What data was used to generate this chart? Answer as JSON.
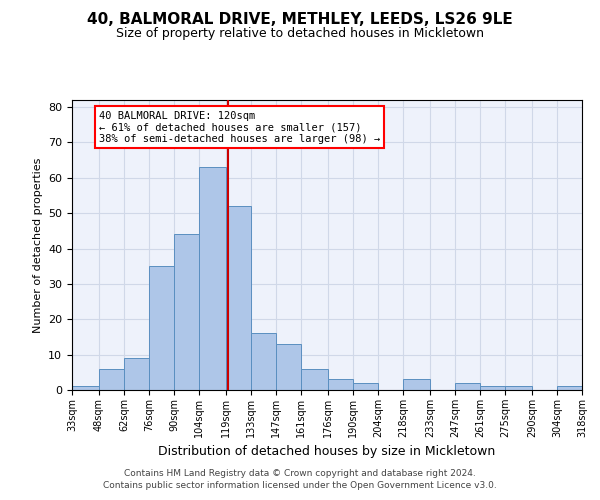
{
  "title": "40, BALMORAL DRIVE, METHLEY, LEEDS, LS26 9LE",
  "subtitle": "Size of property relative to detached houses in Mickletown",
  "xlabel": "Distribution of detached houses by size in Mickletown",
  "ylabel": "Number of detached properties",
  "footnote1": "Contains HM Land Registry data © Crown copyright and database right 2024.",
  "footnote2": "Contains public sector information licensed under the Open Government Licence v3.0.",
  "annotation_line1": "40 BALMORAL DRIVE: 120sqm",
  "annotation_line2": "← 61% of detached houses are smaller (157)",
  "annotation_line3": "38% of semi-detached houses are larger (98) →",
  "bar_color": "#aec6e8",
  "bar_edge_color": "#5a8fc0",
  "vline_color": "#cc0000",
  "vline_x": 120,
  "bin_edges": [
    33,
    48,
    62,
    76,
    90,
    104,
    119,
    133,
    147,
    161,
    176,
    190,
    204,
    218,
    233,
    247,
    261,
    275,
    290,
    304,
    318
  ],
  "bar_heights": [
    1,
    6,
    9,
    35,
    44,
    63,
    52,
    16,
    13,
    6,
    3,
    2,
    0,
    3,
    0,
    2,
    1,
    1,
    0,
    1
  ],
  "ylim": [
    0,
    82
  ],
  "yticks": [
    0,
    10,
    20,
    30,
    40,
    50,
    60,
    70,
    80
  ],
  "grid_color": "#d0d8e8",
  "background_color": "#eef2fb",
  "tick_labels": [
    "33sqm",
    "48sqm",
    "62sqm",
    "76sqm",
    "90sqm",
    "104sqm",
    "119sqm",
    "133sqm",
    "147sqm",
    "161sqm",
    "176sqm",
    "190sqm",
    "204sqm",
    "218sqm",
    "233sqm",
    "247sqm",
    "261sqm",
    "275sqm",
    "290sqm",
    "304sqm",
    "318sqm"
  ],
  "title_fontsize": 11,
  "subtitle_fontsize": 9,
  "ylabel_fontsize": 8,
  "xlabel_fontsize": 9
}
